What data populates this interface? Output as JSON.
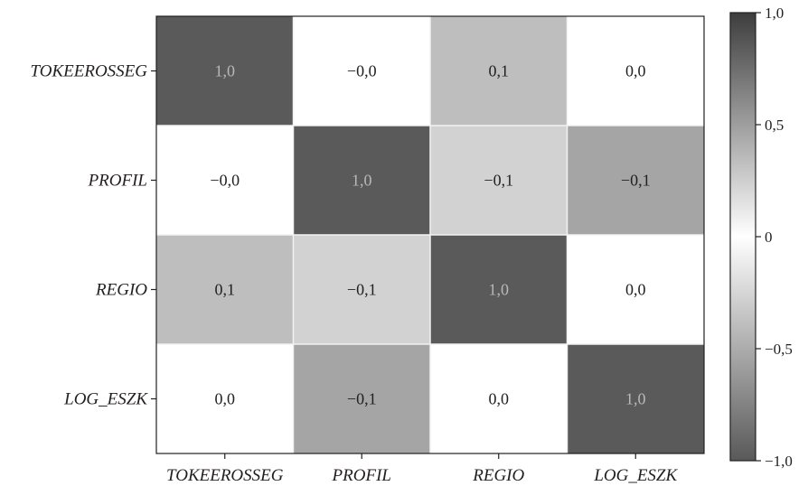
{
  "chart_data": {
    "type": "heatmap",
    "x_labels": [
      "TOKEEROSSEG",
      "PROFIL",
      "REGIO",
      "LOG_ESZK"
    ],
    "y_labels": [
      "TOKEEROSSEG",
      "PROFIL",
      "REGIO",
      "LOG_ESZK"
    ],
    "values": [
      [
        1.0,
        -0.0,
        0.1,
        0.0
      ],
      [
        -0.0,
        1.0,
        -0.1,
        -0.1
      ],
      [
        0.1,
        -0.1,
        1.0,
        0.0
      ],
      [
        0.0,
        -0.1,
        0.0,
        1.0
      ]
    ],
    "cell_labels": [
      [
        "1,0",
        "−0,0",
        "0,1",
        "0,0"
      ],
      [
        "−0,0",
        "1,0",
        "−0,1",
        "−0,1"
      ],
      [
        "0,1",
        "−0,1",
        "1,0",
        "0,0"
      ],
      [
        "0,0",
        "−0,1",
        "0,0",
        "1,0"
      ]
    ],
    "cell_colors": [
      [
        "#5a5a5a",
        "#ffffff",
        "#bebebe",
        "#ffffff"
      ],
      [
        "#ffffff",
        "#5a5a5a",
        "#d2d2d2",
        "#a5a5a5"
      ],
      [
        "#bebebe",
        "#d2d2d2",
        "#5a5a5a",
        "#ffffff"
      ],
      [
        "#ffffff",
        "#a5a5a5",
        "#ffffff",
        "#5a5a5a"
      ]
    ],
    "colorbar": {
      "range": [
        -1.0,
        1.0
      ],
      "ticks": [
        1.0,
        0.5,
        0,
        -0.5,
        -1.0
      ],
      "tick_labels": [
        "1,0",
        "0,5",
        "0",
        "−0,5",
        "−1,0"
      ],
      "position": "right",
      "colors": [
        "#595959",
        "#ffffff",
        "#3d3d3d"
      ]
    },
    "title": "",
    "xlabel": "",
    "ylabel": "",
    "grid": false
  }
}
